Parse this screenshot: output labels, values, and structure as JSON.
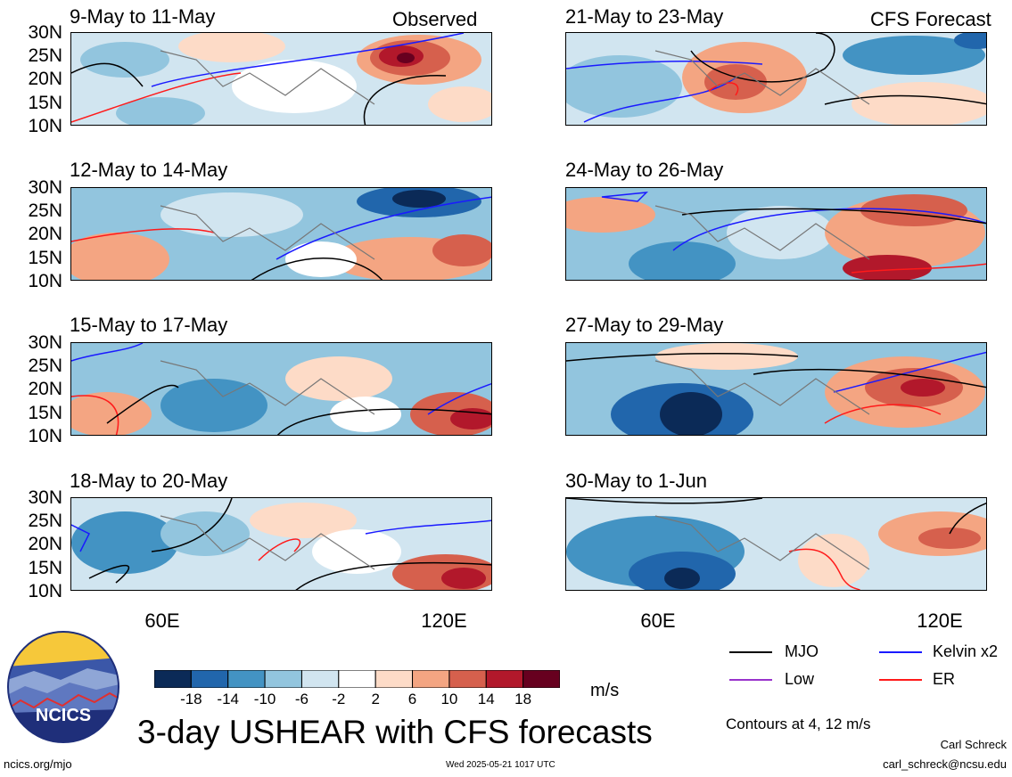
{
  "panels": [
    {
      "title": "9-May to 11-May",
      "tag": "Observed",
      "col": 0,
      "row": 0
    },
    {
      "title": "12-May to 14-May",
      "tag": "",
      "col": 0,
      "row": 1
    },
    {
      "title": "15-May to 17-May",
      "tag": "",
      "col": 0,
      "row": 2
    },
    {
      "title": "18-May to 20-May",
      "tag": "",
      "col": 0,
      "row": 3
    },
    {
      "title": "21-May to 23-May",
      "tag": "CFS Forecast",
      "col": 1,
      "row": 0
    },
    {
      "title": "24-May to 26-May",
      "tag": "",
      "col": 1,
      "row": 1
    },
    {
      "title": "27-May to 29-May",
      "tag": "",
      "col": 1,
      "row": 2
    },
    {
      "title": "30-May to 1-Jun",
      "tag": "",
      "col": 1,
      "row": 3
    }
  ],
  "lat_labels": [
    "30N",
    "25N",
    "20N",
    "15N",
    "10N"
  ],
  "lon_labels": [
    "60E",
    "120E"
  ],
  "colorbar": {
    "ticks": [
      "-18",
      "-14",
      "-10",
      "-6",
      "-2",
      "2",
      "6",
      "10",
      "14",
      "18"
    ],
    "colors": [
      "#0b2a57",
      "#2166ac",
      "#4393c3",
      "#92c5de",
      "#d1e5f0",
      "#ffffff",
      "#fddbc7",
      "#f4a582",
      "#d6604d",
      "#b2182b",
      "#67001f"
    ],
    "unit": "m/s"
  },
  "legend": {
    "items": [
      {
        "label": "MJO",
        "color": "#000000"
      },
      {
        "label": "Kelvin x2",
        "color": "#1a1aff"
      },
      {
        "label": "Low",
        "color": "#9933cc"
      },
      {
        "label": "ER",
        "color": "#ff1a1a"
      }
    ],
    "note": "Contours at 4, 12 m/s"
  },
  "main_title": "3-day USHEAR with CFS forecasts",
  "logo_text": "NCICS",
  "footer": {
    "left": "ncics.org/mjo",
    "center": "Wed 2025-05-21 1017 UTC",
    "author": "Carl Schreck",
    "email": "carl_schreck@ncsu.edu"
  }
}
